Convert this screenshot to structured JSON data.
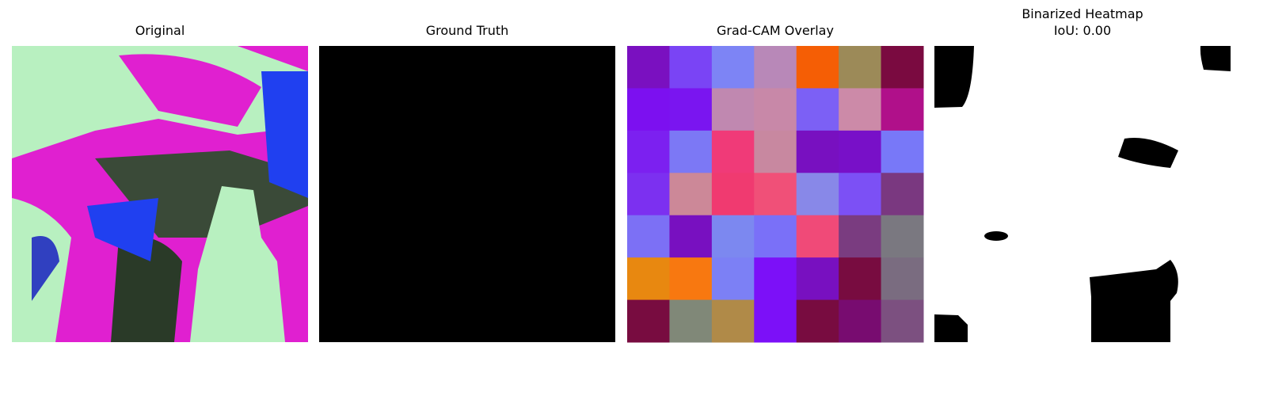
{
  "panels": [
    {
      "title": "Original"
    },
    {
      "title": "Ground Truth"
    },
    {
      "title": "Grad-CAM Overlay",
      "grid_colors": [
        [
          "#7a10c0",
          "#7a44f5",
          "#7d84f5",
          "#b888b8",
          "#f55e05",
          "#9c8a58",
          "#7a0a40"
        ],
        [
          "#7c10f0",
          "#7a15f0",
          "#c088b0",
          "#c888a8",
          "#7c60f5",
          "#cc8aa8",
          "#b0108a"
        ],
        [
          "#7c20f0",
          "#7c78f5",
          "#f03a78",
          "#c888a0",
          "#7810c0",
          "#7810c8",
          "#7878f8"
        ],
        [
          "#7c30f0",
          "#cc8898",
          "#f03a70",
          "#f05078",
          "#8888e8",
          "#7c50f5",
          "#7a3880"
        ],
        [
          "#7c70f5",
          "#7810c0",
          "#7c88f0",
          "#7a70f8",
          "#f04a78",
          "#7a3c80",
          "#7a7880"
        ],
        [
          "#e88810",
          "#f87810",
          "#7c80f5",
          "#7c10f8",
          "#7810c0",
          "#780c40",
          "#7a6c80"
        ],
        [
          "#780c40",
          "#808878",
          "#b08a48",
          "#7c10f8",
          "#780c40",
          "#780c70",
          "#7c5080"
        ]
      ]
    },
    {
      "title": [
        "Binarized Heatmap",
        "IoU: 0.00"
      ]
    }
  ]
}
